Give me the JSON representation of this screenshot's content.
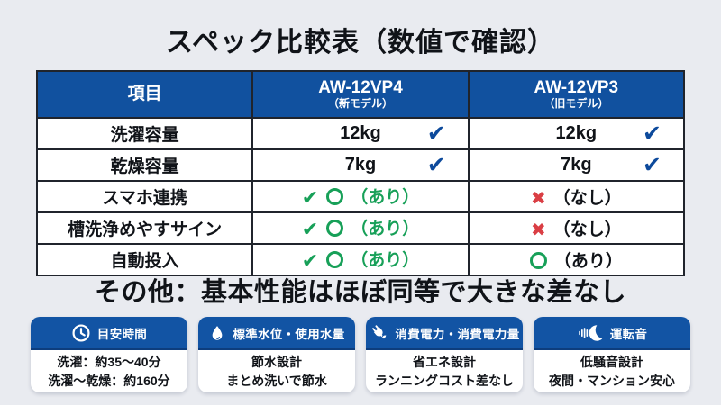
{
  "title": "スペック比較表（数値で確認）",
  "note": "その他：基本性能はほぼ同等で大きな差なし",
  "glyphs": {
    "check": "✔",
    "cross": "✖",
    "circle": "○"
  },
  "colors": {
    "background": "#e9ebf0",
    "table_header_blue": "#11519f",
    "card_header_blue": "#1254a4",
    "check_blue": "#0d4a9c",
    "ok_green": "#17a058",
    "ng_red": "#da3e44"
  },
  "table": {
    "columns": [
      {
        "label": "項目",
        "sub": ""
      },
      {
        "label": "AW-12VP4",
        "sub": "（新モデル）"
      },
      {
        "label": "AW-12VP3",
        "sub": "（旧モデル）"
      }
    ],
    "rows": [
      {
        "label": "洗濯容量",
        "cells": [
          {
            "kind": "value-check",
            "value": "12kg"
          },
          {
            "kind": "value-check",
            "value": "12kg"
          }
        ]
      },
      {
        "label": "乾燥容量",
        "cells": [
          {
            "kind": "value-check",
            "value": "7kg"
          },
          {
            "kind": "value-check",
            "value": "7kg"
          }
        ]
      },
      {
        "label": "スマホ連携",
        "cells": [
          {
            "kind": "yes-highlight",
            "text": "（あり）"
          },
          {
            "kind": "no",
            "text": "（なし）"
          }
        ]
      },
      {
        "label": "槽洗浄めやすサイン",
        "cells": [
          {
            "kind": "yes-highlight",
            "text": "（あり）"
          },
          {
            "kind": "no",
            "text": "（なし）"
          }
        ]
      },
      {
        "label": "自動投入",
        "cells": [
          {
            "kind": "yes-highlight",
            "text": "（あり）"
          },
          {
            "kind": "yes-plain",
            "text": "（あり）"
          }
        ]
      }
    ]
  },
  "chart_data": {
    "type": "table",
    "title": "スペック比較表（数値で確認）",
    "columns": [
      "項目",
      "AW-12VP4（新モデル）",
      "AW-12VP3（旧モデル）"
    ],
    "rows": [
      [
        "洗濯容量",
        "12kg ✔",
        "12kg ✔"
      ],
      [
        "乾燥容量",
        "7kg ✔",
        "7kg ✔"
      ],
      [
        "スマホ連携",
        "✔ ○（あり）",
        "✖（なし）"
      ],
      [
        "槽洗浄めやすサイン",
        "✔ ○（あり）",
        "✖（なし）"
      ],
      [
        "自動投入",
        "✔ ○（あり）",
        "○（あり）"
      ]
    ]
  },
  "cards": [
    {
      "icon": "clock-icon",
      "title": "目安時間",
      "lines": [
        "洗濯：約35〜40分",
        "洗濯〜乾燥：約160分"
      ]
    },
    {
      "icon": "water-drop-icon",
      "title": "標準水位・使用水量",
      "lines": [
        "節水設計",
        "まとめ洗いで節水"
      ]
    },
    {
      "icon": "eco-plug-icon",
      "title": "消費電力・消費電力量",
      "lines": [
        "省エネ設計",
        "ランニングコスト差なし"
      ]
    },
    {
      "icon": "sound-wave-moon-icon",
      "title": "運転音",
      "lines": [
        "低騒音設計",
        "夜間・マンション安心"
      ]
    }
  ]
}
